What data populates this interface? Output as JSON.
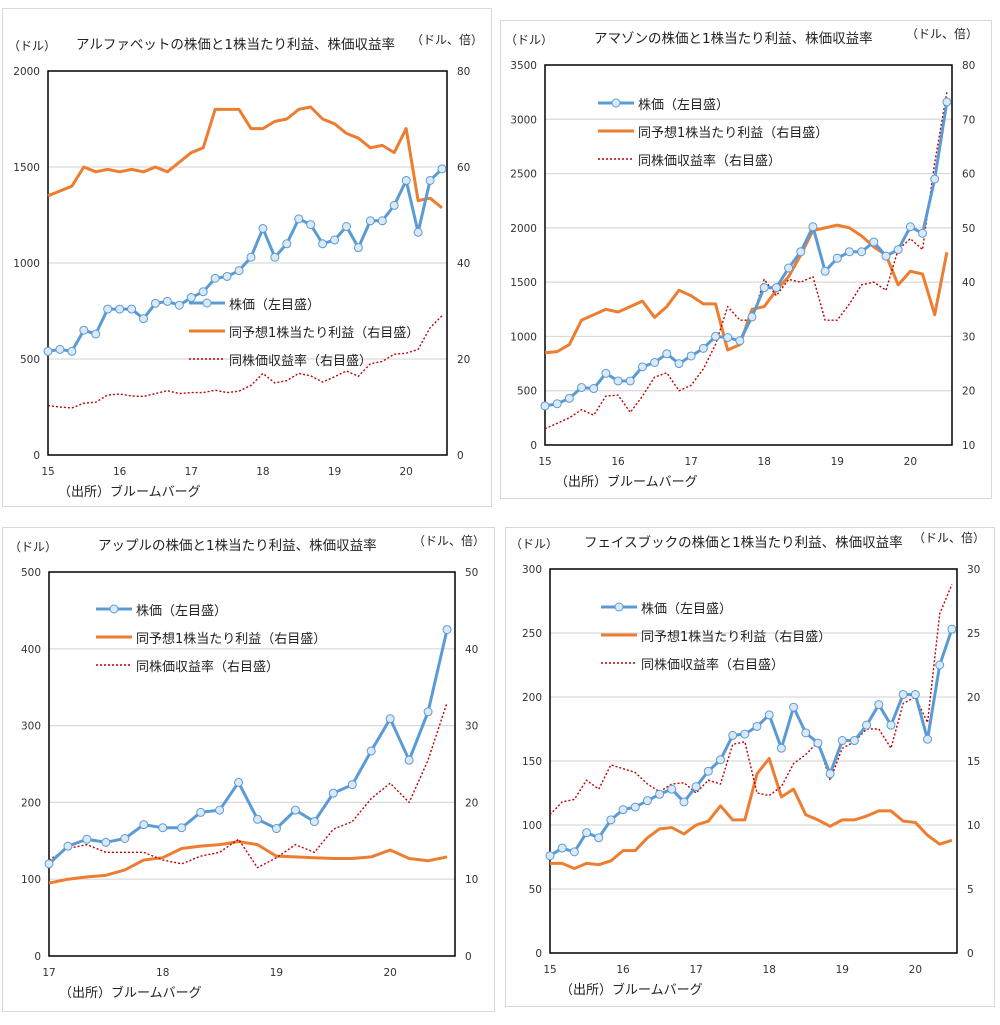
{
  "colors": {
    "price": "#5b9bd5",
    "eps": "#ed7d31",
    "pe": "#c00000",
    "grid": "#d9d9d9",
    "marker_fill": "#dbe9f7"
  },
  "legend": {
    "price": "株価（左目盛）",
    "eps": "同予想1株当たり利益（右目盛）",
    "pe": "同株価収益率（右目盛）"
  },
  "chart_data": [
    {
      "type": "line",
      "title": "アルファベットの株価と1株当たり利益、株価収益率",
      "left_unit": "（ドル）",
      "right_unit": "（ドル、倍）",
      "source": "（出所）ブルームバーグ",
      "x_ticks": [
        "15",
        "16",
        "17",
        "18",
        "19",
        "20"
      ],
      "ylim_left": [
        0,
        2000
      ],
      "yticks_left": [
        0,
        500,
        1000,
        1500,
        2000
      ],
      "ylim_right": [
        0,
        80
      ],
      "yticks_right": [
        0,
        20,
        40,
        60,
        80
      ],
      "x": [
        "2015-01",
        "2015-03",
        "2015-05",
        "2015-07",
        "2015-09",
        "2015-11",
        "2016-01",
        "2016-03",
        "2016-05",
        "2016-07",
        "2016-09",
        "2016-11",
        "2017-01",
        "2017-03",
        "2017-05",
        "2017-07",
        "2017-09",
        "2017-11",
        "2018-01",
        "2018-03",
        "2018-05",
        "2018-07",
        "2018-09",
        "2018-11",
        "2019-01",
        "2019-03",
        "2019-05",
        "2019-07",
        "2019-09",
        "2019-11",
        "2020-01",
        "2020-03",
        "2020-05",
        "2020-07"
      ],
      "series": [
        {
          "name": "株価（左目盛）",
          "axis": "left",
          "values": [
            540,
            550,
            540,
            650,
            630,
            760,
            760,
            760,
            710,
            790,
            800,
            780,
            820,
            850,
            920,
            930,
            960,
            1030,
            1180,
            1030,
            1100,
            1230,
            1200,
            1100,
            1120,
            1190,
            1080,
            1220,
            1220,
            1300,
            1430,
            1160,
            1430,
            1490
          ]
        },
        {
          "name": "同予想1株当たり利益（右目盛）",
          "axis": "right",
          "values": [
            54,
            55,
            56,
            60,
            59,
            59.5,
            59,
            59.5,
            59,
            60,
            59,
            61,
            63,
            64,
            72,
            72,
            72,
            68,
            68,
            69.5,
            70,
            72,
            72.5,
            70,
            69,
            67,
            66,
            64,
            64.5,
            63,
            68,
            53,
            53.5,
            51.5
          ]
        },
        {
          "name": "同株価収益率（右目盛）",
          "axis": "right",
          "values": [
            10.3,
            10,
            9.8,
            10.8,
            11,
            12.5,
            12.7,
            12.3,
            12.2,
            12.8,
            13.4,
            12.8,
            13,
            13,
            13.5,
            13,
            13.3,
            14.5,
            17,
            15,
            15.5,
            17,
            16.5,
            15.2,
            16.3,
            17.5,
            16.4,
            19,
            19.5,
            21,
            21.2,
            22,
            26.5,
            29
          ]
        }
      ]
    },
    {
      "type": "line",
      "title": "アマゾンの株価と1株当たり利益、株価収益率",
      "left_unit": "（ドル）",
      "right_unit": "（ドル、倍）",
      "source": "（出所）ブルームバーグ",
      "x_ticks": [
        "15",
        "16",
        "17",
        "18",
        "19",
        "20"
      ],
      "ylim_left": [
        0,
        3500
      ],
      "yticks_left": [
        0,
        500,
        1000,
        1500,
        2000,
        2500,
        3000,
        3500
      ],
      "ylim_right": [
        10,
        80
      ],
      "yticks_right": [
        10,
        20,
        30,
        40,
        50,
        60,
        70,
        80
      ],
      "x": [
        "2015-01",
        "2015-03",
        "2015-05",
        "2015-07",
        "2015-09",
        "2015-11",
        "2016-01",
        "2016-03",
        "2016-05",
        "2016-07",
        "2016-09",
        "2016-11",
        "2017-01",
        "2017-03",
        "2017-05",
        "2017-07",
        "2017-09",
        "2017-11",
        "2018-01",
        "2018-03",
        "2018-05",
        "2018-07",
        "2018-09",
        "2018-11",
        "2019-01",
        "2019-03",
        "2019-05",
        "2019-07",
        "2019-09",
        "2019-11",
        "2020-01",
        "2020-03",
        "2020-05",
        "2020-07"
      ],
      "series": [
        {
          "name": "株価（左目盛）",
          "axis": "left",
          "values": [
            360,
            380,
            430,
            530,
            520,
            660,
            590,
            590,
            720,
            760,
            840,
            750,
            820,
            890,
            1000,
            990,
            960,
            1180,
            1450,
            1450,
            1630,
            1780,
            2010,
            1600,
            1720,
            1780,
            1780,
            1870,
            1740,
            1800,
            2010,
            1950,
            2450,
            3160
          ]
        },
        {
          "name": "同予想1株当たり利益（右目盛）",
          "axis": "right",
          "values": [
            27,
            27.2,
            28.5,
            33,
            34,
            35,
            34.5,
            35.5,
            36.5,
            33.5,
            35.5,
            38.5,
            37.5,
            36,
            36,
            27.5,
            28.5,
            35,
            35.5,
            38.5,
            41,
            45,
            49.5,
            50,
            50.5,
            50,
            48.5,
            46.5,
            45,
            39.5,
            42,
            41.5,
            34,
            45.5
          ]
        },
        {
          "name": "同株価収益率（右目盛）",
          "axis": "right",
          "values": [
            13,
            14,
            15,
            16.5,
            15.5,
            19,
            19.2,
            16,
            19,
            22.5,
            23.3,
            20,
            21,
            24,
            28.5,
            35.5,
            33,
            33,
            40.5,
            37.5,
            40.5,
            40,
            41,
            33,
            33,
            36,
            39.5,
            40,
            38.5,
            46,
            48,
            46,
            62,
            75
          ]
        }
      ]
    },
    {
      "type": "line",
      "title": "アップルの株価と1株当たり利益、株価収益率",
      "left_unit": "（ドル）",
      "right_unit": "（ドル、倍）",
      "source": "（出所）ブルームバーグ",
      "x_ticks": [
        "17",
        "18",
        "19",
        "20"
      ],
      "ylim_left": [
        0,
        500
      ],
      "yticks_left": [
        0,
        100,
        200,
        300,
        400,
        500
      ],
      "ylim_right": [
        0,
        50
      ],
      "yticks_right": [
        0,
        10,
        20,
        30,
        40,
        50
      ],
      "x": [
        "2017-01",
        "2017-03",
        "2017-05",
        "2017-07",
        "2017-09",
        "2017-11",
        "2018-01",
        "2018-03",
        "2018-05",
        "2018-07",
        "2018-09",
        "2018-11",
        "2019-01",
        "2019-03",
        "2019-05",
        "2019-07",
        "2019-09",
        "2019-11",
        "2020-01",
        "2020-03",
        "2020-05",
        "2020-07"
      ],
      "series": [
        {
          "name": "株価（左目盛）",
          "axis": "left",
          "values": [
            120,
            143,
            152,
            148,
            153,
            171,
            167,
            167,
            187,
            190,
            226,
            178,
            166,
            190,
            175,
            212,
            223,
            267,
            309,
            255,
            318,
            425
          ]
        },
        {
          "name": "同予想1株当たり利益（右目盛）",
          "axis": "right",
          "values": [
            9.5,
            10,
            10.3,
            10.5,
            11.2,
            12.5,
            12.8,
            14,
            14.3,
            14.5,
            14.9,
            14.5,
            13,
            12.9,
            12.8,
            12.7,
            12.7,
            12.9,
            13.8,
            12.7,
            12.4,
            12.9
          ]
        },
        {
          "name": "同株価収益率（右目盛）",
          "axis": "right",
          "values": [
            12.5,
            14,
            14.5,
            13.5,
            13.5,
            13.5,
            12.5,
            12,
            13,
            13.5,
            15.2,
            11.5,
            12.8,
            14.5,
            13.5,
            16.5,
            17.5,
            20.5,
            22.5,
            20,
            25.5,
            33
          ]
        }
      ]
    },
    {
      "type": "line",
      "title": "フェイスブックの株価と1株当たり利益、株価収益率",
      "left_unit": "（ドル）",
      "right_unit": "（ドル、倍）",
      "source": "（出所）ブルームバーグ",
      "x_ticks": [
        "15",
        "16",
        "17",
        "18",
        "19",
        "20"
      ],
      "ylim_left": [
        0,
        300
      ],
      "yticks_left": [
        0,
        50,
        100,
        150,
        200,
        250,
        300
      ],
      "ylim_right": [
        0,
        30
      ],
      "yticks_right": [
        0,
        5,
        10,
        15,
        20,
        25,
        30
      ],
      "x": [
        "2015-01",
        "2015-03",
        "2015-05",
        "2015-07",
        "2015-09",
        "2015-11",
        "2016-01",
        "2016-03",
        "2016-05",
        "2016-07",
        "2016-09",
        "2016-11",
        "2017-01",
        "2017-03",
        "2017-05",
        "2017-07",
        "2017-09",
        "2017-11",
        "2018-01",
        "2018-03",
        "2018-05",
        "2018-07",
        "2018-09",
        "2018-11",
        "2019-01",
        "2019-03",
        "2019-05",
        "2019-07",
        "2019-09",
        "2019-11",
        "2020-01",
        "2020-03",
        "2020-05",
        "2020-07"
      ],
      "series": [
        {
          "name": "株価（左目盛）",
          "axis": "left",
          "values": [
            76,
            82,
            79,
            94,
            90,
            104,
            112,
            114,
            119,
            124,
            128,
            118,
            130,
            142,
            151,
            170,
            171,
            177,
            186,
            160,
            192,
            172,
            164,
            140,
            166,
            166,
            178,
            194,
            178,
            202,
            202,
            167,
            225,
            253
          ]
        },
        {
          "name": "同予想1株当たり利益（右目盛）",
          "axis": "right",
          "values": [
            7,
            7,
            6.6,
            7,
            6.9,
            7.2,
            8,
            8,
            9,
            9.7,
            9.8,
            9.3,
            10,
            10.3,
            11.5,
            10.4,
            10.4,
            14,
            15.2,
            12.2,
            12.8,
            10.8,
            10.4,
            9.9,
            10.4,
            10.4,
            10.7,
            11.1,
            11.1,
            10.3,
            10.2,
            9.2,
            8.5,
            8.8
          ]
        },
        {
          "name": "同株価収益率（右目盛）",
          "axis": "right",
          "values": [
            10.8,
            11.8,
            12,
            13.5,
            12.8,
            14.7,
            14.4,
            14.1,
            13.2,
            12.6,
            13.2,
            13.3,
            12.5,
            13.5,
            13.2,
            16.3,
            16.5,
            12.5,
            12.3,
            13,
            14.8,
            15.5,
            16.5,
            13.5,
            16,
            16.5,
            17.5,
            17.5,
            16,
            19.5,
            20,
            18,
            26.5,
            28.8
          ]
        }
      ]
    }
  ]
}
